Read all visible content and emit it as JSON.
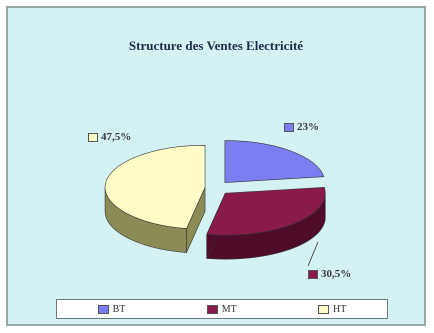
{
  "chart_data": {
    "type": "pie",
    "title": "Structure des Ventes Electricité",
    "slices": [
      {
        "label": "BT",
        "value": 23,
        "display": "23%",
        "color": "#7b7ef0",
        "side": "#4a4ca3"
      },
      {
        "label": "MT",
        "value": 30.5,
        "display": "30,5%",
        "color": "#8a1a4a",
        "side": "#4e0c29"
      },
      {
        "label": "HT",
        "value": 47.5,
        "display": "47,5%",
        "color": "#fffcc8",
        "side": "#8a8b55"
      }
    ],
    "legend": [
      "BT",
      "MT",
      "HT"
    ],
    "legend_position": "bottom"
  }
}
